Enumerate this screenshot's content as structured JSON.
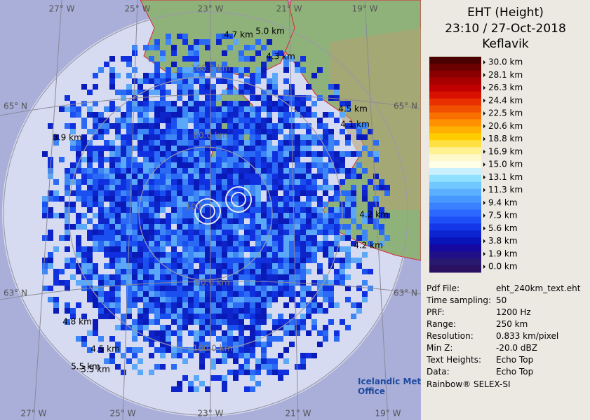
{
  "map": {
    "lon_top": [
      "27° W",
      "25° W",
      "23° W",
      "21° W",
      "19° W"
    ],
    "lon_bottom": [
      "27° W",
      "25° W",
      "23° W",
      "21° W",
      "19° W"
    ],
    "lat_left": [
      "65° N",
      "63° N"
    ],
    "lat_right": [
      "65° N",
      "63° N"
    ],
    "ring_labels": [
      "160.0 km",
      "80.0 km",
      "80.0 km",
      "160.0 km",
      "100"
    ],
    "height_labels": [
      "4.7 km",
      "5.0 km",
      "4.3 km",
      "4.5 km",
      "4.1 km",
      "3.9 km",
      "4.2 km",
      "4.2 km",
      "4.8 km",
      "4.5 km",
      "5.5 km",
      "3.5 km"
    ]
  },
  "panel": {
    "title": "EHT (Height)",
    "time": "23:10 / 27-Oct-2018",
    "site": "Keflavik",
    "scale_labels": [
      "30.0 km",
      "28.1 km",
      "26.3 km",
      "24.4 km",
      "22.5 km",
      "20.6 km",
      "18.8 km",
      "16.9 km",
      "15.0 km",
      "13.1 km",
      "11.3 km",
      "9.4 km",
      "7.5 km",
      "5.6 km",
      "3.8 km",
      "1.9 km",
      "0.0 km"
    ],
    "info": [
      [
        "Pdf File:",
        "eht_240km_text.eht"
      ],
      [
        "Time sampling:",
        "50"
      ],
      [
        "PRF:",
        "1200 Hz"
      ],
      [
        "Range:",
        "250 km"
      ],
      [
        "Resolution:",
        "0.833 km/pixel"
      ],
      [
        "Min Z:",
        "-20.0 dBZ"
      ],
      [
        "Text Heights:",
        "Echo Top"
      ],
      [
        "Data:",
        "Echo Top"
      ]
    ],
    "logo": [
      "Icelandic Met",
      "Office"
    ],
    "footer": "Rainbow® SELEX-SI"
  }
}
